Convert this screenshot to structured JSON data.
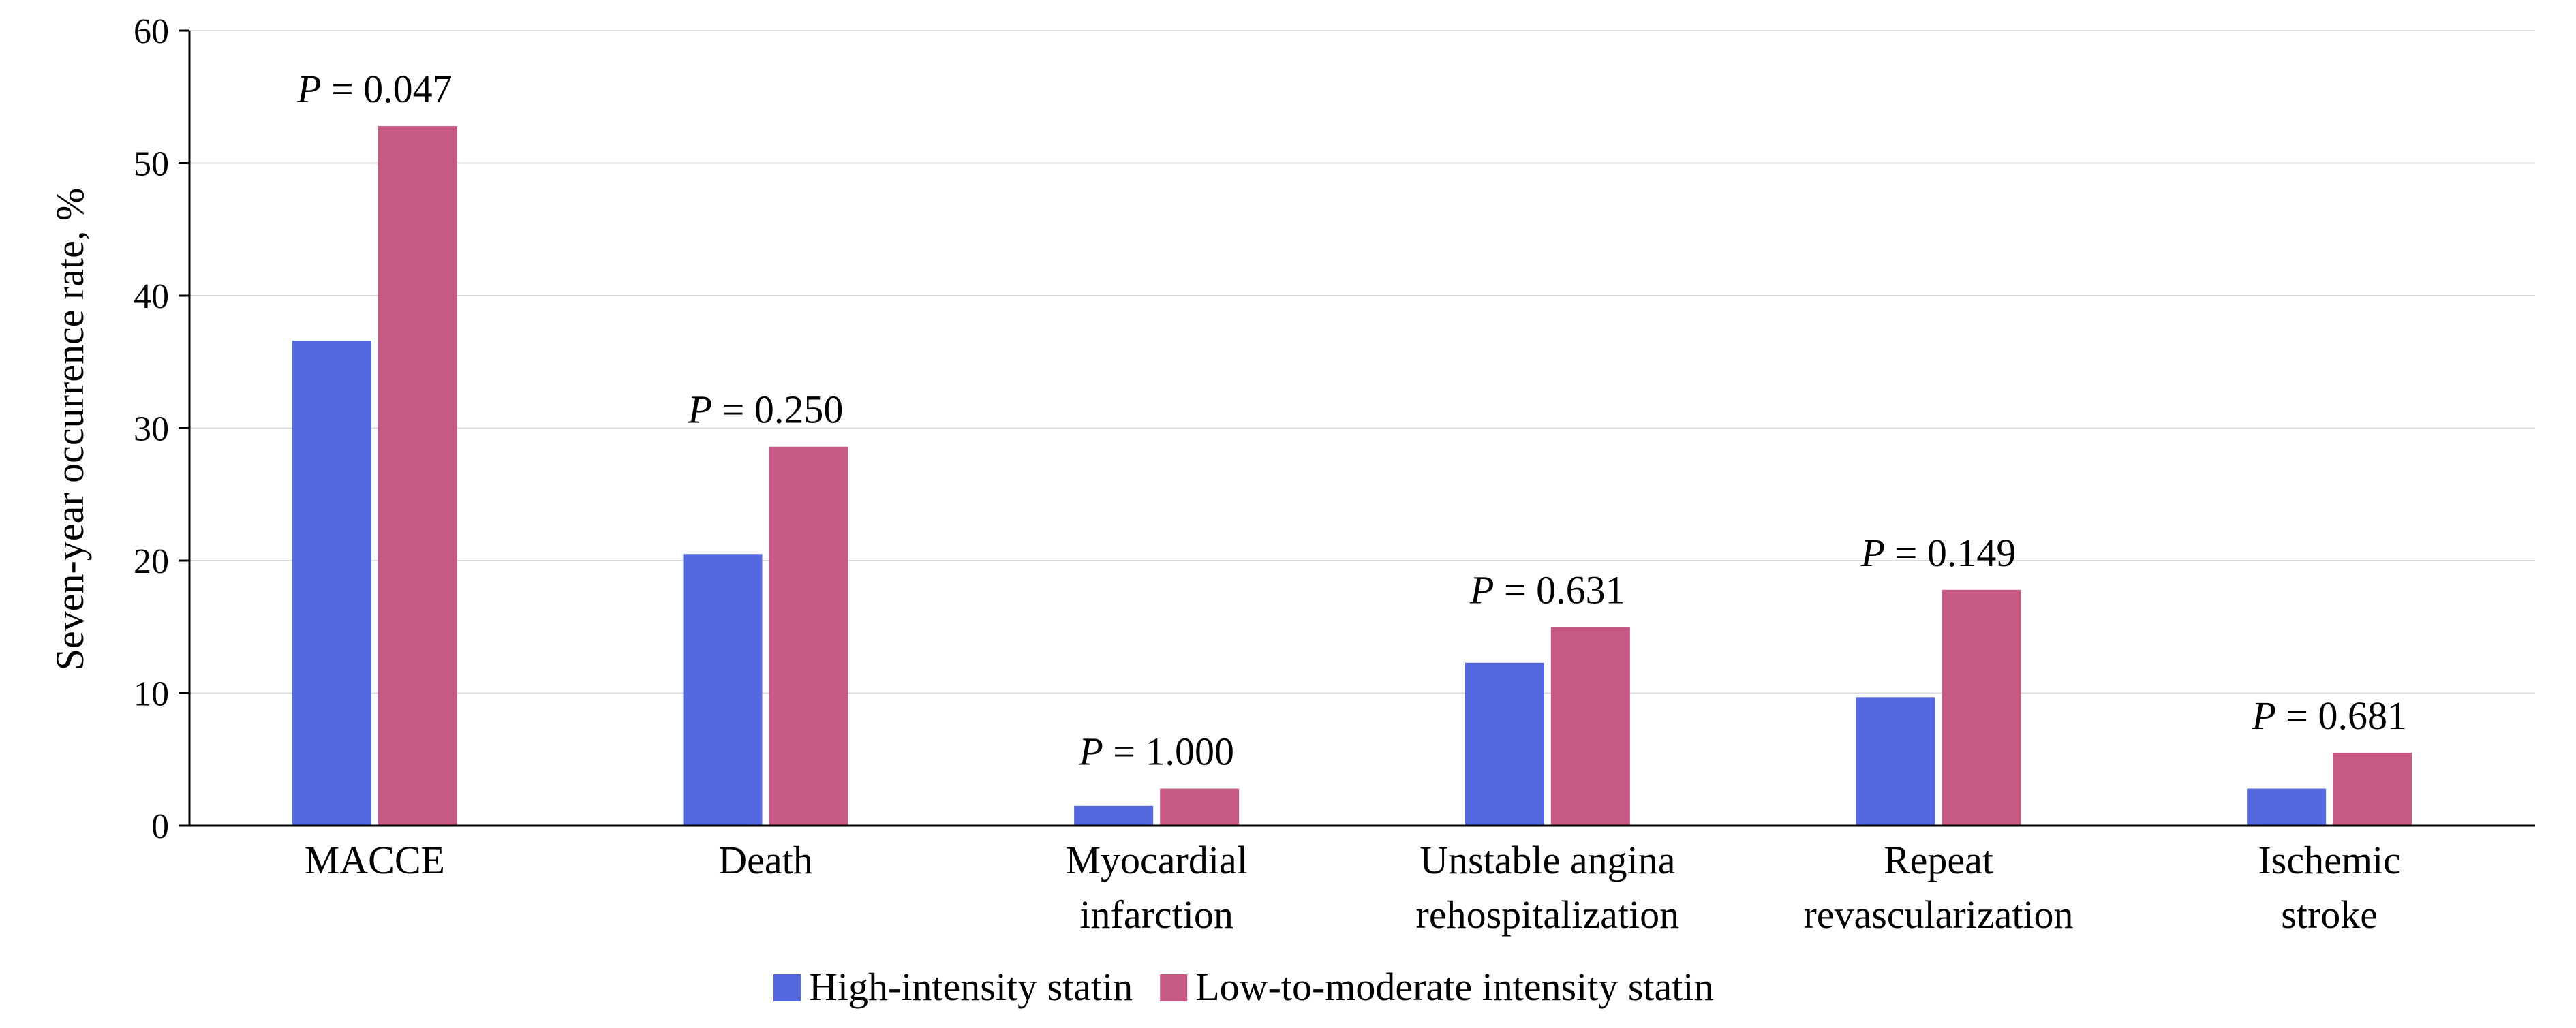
{
  "chart_data": {
    "type": "bar",
    "title": "",
    "xlabel": "",
    "ylabel": "Seven-year occurrence rate, %",
    "ylim": [
      0,
      60
    ],
    "yticks": [
      0,
      10,
      20,
      30,
      40,
      50,
      60
    ],
    "grid": true,
    "legend_position": "bottom",
    "categories": [
      [
        "MACCE"
      ],
      [
        "Death"
      ],
      [
        "Myocardial",
        "infarction"
      ],
      [
        "Unstable angina",
        "rehospitalization"
      ],
      [
        "Repeat",
        "revascularization"
      ],
      [
        "Ischemic",
        "stroke"
      ]
    ],
    "series": [
      {
        "name": "High-intensity statin",
        "color": "#5468E0",
        "values": [
          36.6,
          20.5,
          1.5,
          12.3,
          9.7,
          2.8
        ]
      },
      {
        "name": "Low-to-moderate intensity statin",
        "color": "#C65A85",
        "values": [
          52.8,
          28.6,
          2.8,
          15.0,
          17.8,
          5.5
        ]
      }
    ],
    "annotations": [
      {
        "p": "P",
        "eq": " = 0.047"
      },
      {
        "p": "P",
        "eq": " = 0.250"
      },
      {
        "p": "P",
        "eq": " = 1.000"
      },
      {
        "p": "P",
        "eq": " = 0.631"
      },
      {
        "p": "P",
        "eq": " = 0.149"
      },
      {
        "p": "P",
        "eq": " = 0.681"
      }
    ]
  }
}
